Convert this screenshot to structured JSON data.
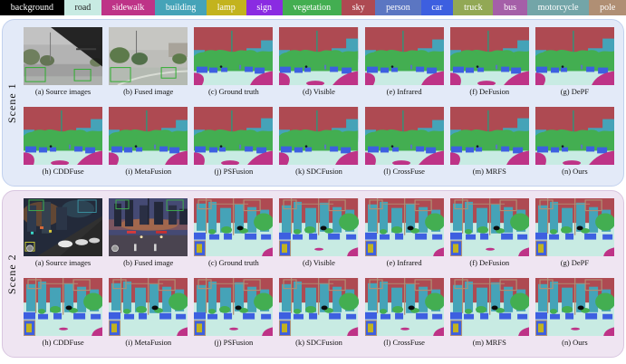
{
  "legend": {
    "items": [
      {
        "label": "background",
        "color": "#000000",
        "text": "#ffffff"
      },
      {
        "label": "road",
        "color": "#C8EBE3",
        "text": "#222222"
      },
      {
        "label": "sidewalk",
        "color": "#BE3387",
        "text": "#ffffff"
      },
      {
        "label": "building",
        "color": "#45A3B8",
        "text": "#ffffff"
      },
      {
        "label": "lamp",
        "color": "#C3B31E",
        "text": "#ffffff"
      },
      {
        "label": "sign",
        "color": "#8A2BE2",
        "text": "#ffffff"
      },
      {
        "label": "vegetation",
        "color": "#43AE51",
        "text": "#ffffff"
      },
      {
        "label": "sky",
        "color": "#AE4A52",
        "text": "#ffffff"
      },
      {
        "label": "person",
        "color": "#5B76C2",
        "text": "#ffffff"
      },
      {
        "label": "car",
        "color": "#3D5FE0",
        "text": "#ffffff"
      },
      {
        "label": "truck",
        "color": "#92A855",
        "text": "#ffffff"
      },
      {
        "label": "bus",
        "color": "#A55FA8",
        "text": "#ffffff"
      },
      {
        "label": "motorcycle",
        "color": "#73A5A8",
        "text": "#ffffff"
      },
      {
        "label": "pole",
        "color": "#B08F74",
        "text": "#ffffff"
      }
    ]
  },
  "palette": {
    "background": "#000000",
    "road": "#C8EBE3",
    "sidewalk": "#BE3387",
    "building": "#45A3B8",
    "lamp": "#C3B31E",
    "sign": "#8A2BE2",
    "vegetation": "#43AE51",
    "sky": "#AE4A52",
    "person": "#5B76C2",
    "car": "#3D5FE0",
    "truck": "#92A855",
    "bus": "#A55FA8",
    "motorcycle": "#73A5A8",
    "pole": "#B08F74"
  },
  "scenes": [
    {
      "name": "Scene 1",
      "style": "day",
      "bg": "#E3EAF8",
      "border": "#C2D1EE",
      "rows": [
        {
          "panels": [
            {
              "type": "source",
              "caption": "(a) Source images"
            },
            {
              "type": "fused",
              "caption": "(b) Fused image"
            },
            {
              "type": "seg",
              "caption": "(c) Ground truth"
            },
            {
              "type": "seg",
              "caption": "(d) Visible"
            },
            {
              "type": "seg",
              "caption": "(e) Infrared"
            },
            {
              "type": "seg",
              "caption": "(f) DeFusion"
            },
            {
              "type": "seg",
              "caption": "(g) DePF"
            }
          ]
        },
        {
          "panels": [
            {
              "type": "seg",
              "caption": "(h) CDDFuse"
            },
            {
              "type": "seg",
              "caption": "(i) MetaFusion"
            },
            {
              "type": "seg",
              "caption": "(j) PSFusion"
            },
            {
              "type": "seg",
              "caption": "(k) SDCFusion"
            },
            {
              "type": "seg",
              "caption": "(l) CrossFuse"
            },
            {
              "type": "seg",
              "caption": "(m) MRFS"
            },
            {
              "type": "seg",
              "caption": "(n) Ours"
            }
          ]
        }
      ]
    },
    {
      "name": "Scene 2",
      "style": "night",
      "bg": "#EFE5F2",
      "border": "#D9C6E0",
      "rows": [
        {
          "panels": [
            {
              "type": "source",
              "caption": "(a) Source images"
            },
            {
              "type": "fused",
              "caption": "(b) Fused image"
            },
            {
              "type": "seg",
              "caption": "(c) Ground truth"
            },
            {
              "type": "seg",
              "caption": "(d) Visible"
            },
            {
              "type": "seg",
              "caption": "(e) Infrared"
            },
            {
              "type": "seg",
              "caption": "(f) DeFusion"
            },
            {
              "type": "seg",
              "caption": "(g) DePF"
            }
          ]
        },
        {
          "panels": [
            {
              "type": "seg",
              "caption": "(h) CDDFuse"
            },
            {
              "type": "seg",
              "caption": "(i) MetaFusion"
            },
            {
              "type": "seg",
              "caption": "(j) PSFusion"
            },
            {
              "type": "seg",
              "caption": "(k) SDCFusion"
            },
            {
              "type": "seg",
              "caption": "(l) CrossFuse"
            },
            {
              "type": "seg",
              "caption": "(m) MRFS"
            },
            {
              "type": "seg",
              "caption": "(n) Ours"
            }
          ]
        }
      ]
    }
  ]
}
